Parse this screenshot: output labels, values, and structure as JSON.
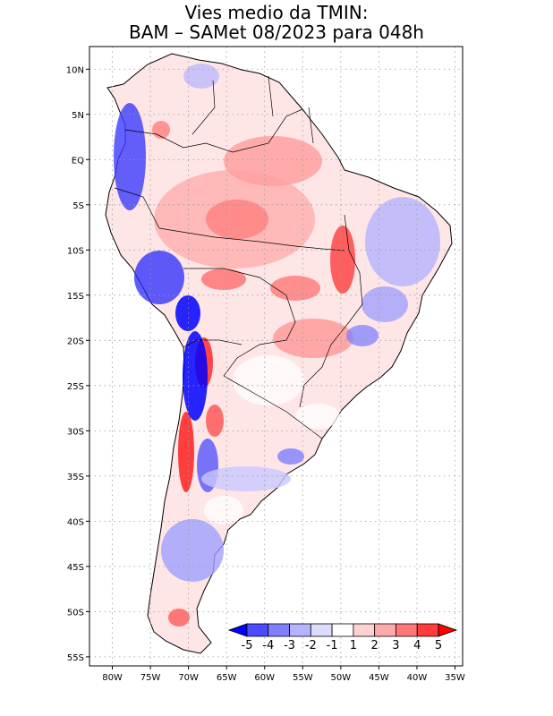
{
  "title": {
    "line1": "Vies medio da TMIN:",
    "line2": "BAM – SAMet 08/2023  para 048h"
  },
  "chart_data": {
    "type": "heatmap",
    "x_ticks": [
      "80W",
      "75W",
      "70W",
      "65W",
      "60W",
      "55W",
      "50W",
      "45W",
      "40W",
      "35W"
    ],
    "y_ticks": [
      "10N",
      "5N",
      "EQ",
      "5S",
      "10S",
      "15S",
      "20S",
      "25S",
      "30S",
      "35S",
      "40S",
      "45S",
      "50S",
      "55S"
    ],
    "lon_range": [
      -83,
      -34
    ],
    "lat_range": [
      12.5,
      -56
    ],
    "grid": true,
    "colorbar": {
      "labels": [
        "-5",
        "-4",
        "-3",
        "-2",
        "-1",
        "1",
        "2",
        "3",
        "4",
        "5"
      ],
      "colors": [
        "#0000ff",
        "#4b4bff",
        "#8080ff",
        "#b4b4ff",
        "#dcdcff",
        "#ffffff",
        "#ffd2d2",
        "#ffaaaa",
        "#ff7878",
        "#ff3c3c",
        "#ff0000"
      ],
      "placement": "bottom-right"
    }
  }
}
